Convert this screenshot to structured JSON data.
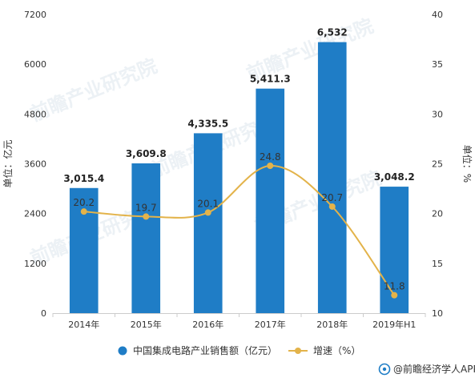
{
  "chart_data": {
    "type": "bar",
    "categories": [
      "2014年",
      "2015年",
      "2016年",
      "2017年",
      "2018年",
      "2019年H1"
    ],
    "series": [
      {
        "name": "中国集成电路产业销售额（亿元）",
        "type": "bar",
        "axis": "left",
        "values": [
          3015.4,
          3609.8,
          4335.5,
          5411.3,
          6532,
          3048.2
        ],
        "labels": [
          "3,015.4",
          "3,609.8",
          "4,335.5",
          "5,411.3",
          "6,532",
          "3,048.2"
        ],
        "color": "#1F7DC6"
      },
      {
        "name": "增速（%）",
        "type": "line",
        "axis": "right",
        "values": [
          20.2,
          19.7,
          20.1,
          24.8,
          20.7,
          11.8
        ],
        "labels": [
          "20.2",
          "19.7",
          "20.1",
          "24.8",
          "20.7",
          "11.8"
        ],
        "color": "#E3B34A"
      }
    ],
    "ylabel_left": "单位：亿元",
    "ylabel_right": "单位：%",
    "ylim_left": [
      0,
      7200
    ],
    "yticks_left": [
      0,
      1200,
      2400,
      3600,
      4800,
      6000,
      7200
    ],
    "ylim_right": [
      10,
      40
    ],
    "yticks_right": [
      10,
      15,
      20,
      25,
      30,
      35,
      40
    ],
    "grid": false,
    "legend_position": "bottom"
  },
  "watermark": "前瞻产业研究院",
  "footer": {
    "source": "@前瞻经济学人APP"
  }
}
